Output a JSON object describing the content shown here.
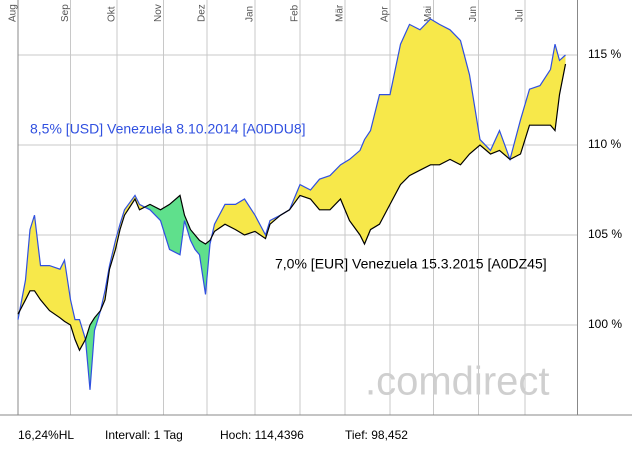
{
  "chart_data": {
    "type": "spread-line",
    "x": [
      0,
      5,
      8,
      11,
      15,
      21,
      28,
      31,
      35,
      38,
      41,
      45,
      48,
      51,
      55,
      58,
      61,
      65,
      68,
      71,
      78,
      81,
      88,
      95,
      101,
      108,
      111,
      115,
      118,
      121,
      125,
      128,
      131,
      138,
      145,
      151,
      158,
      165,
      168,
      175,
      181,
      188,
      195,
      201,
      208,
      215,
      221,
      228,
      231,
      235,
      241,
      248,
      255,
      261,
      268,
      275,
      281,
      288,
      295,
      301,
      308,
      315,
      321,
      328,
      335,
      341,
      348,
      355,
      358,
      361,
      365
    ],
    "series": [
      {
        "name": "8,5% [USD] Venezuela 8.10.2014 [A0DDU8]",
        "color": "#3050e0",
        "values": [
          100.3,
          102.5,
          105.3,
          106.1,
          103.3,
          103.3,
          103.1,
          103.6,
          101.4,
          100.3,
          100.3,
          99.2,
          96.4,
          99.7,
          100.8,
          101.9,
          103.3,
          104.7,
          105.6,
          106.4,
          107.2,
          106.7,
          106.4,
          105.8,
          104.2,
          103.9,
          105.8,
          104.7,
          104.2,
          103.9,
          101.7,
          104.5,
          105.6,
          106.7,
          106.7,
          107.0,
          106.1,
          105.0,
          105.8,
          106.1,
          106.4,
          107.8,
          107.5,
          108.1,
          108.3,
          108.9,
          109.2,
          109.7,
          110.3,
          110.8,
          112.8,
          112.8,
          115.6,
          116.7,
          116.4,
          117.0,
          116.7,
          116.4,
          115.8,
          113.9,
          110.3,
          109.7,
          110.8,
          109.2,
          111.4,
          113.1,
          113.3,
          114.2,
          115.6,
          114.7,
          115.0
        ]
      },
      {
        "name": "7,0% [EUR] Venezuela 15.3.2015 [A0DZ45]",
        "color": "#000000",
        "values": [
          100.6,
          101.4,
          101.9,
          101.9,
          101.4,
          100.8,
          100.4,
          100.2,
          100.0,
          99.2,
          98.6,
          99.2,
          100.0,
          100.4,
          100.8,
          101.4,
          103.1,
          104.2,
          105.3,
          106.1,
          107.0,
          106.4,
          106.7,
          106.4,
          106.7,
          107.2,
          106.1,
          105.3,
          105.0,
          104.7,
          104.5,
          104.7,
          105.2,
          105.6,
          105.3,
          105.0,
          105.2,
          104.8,
          105.6,
          106.1,
          106.4,
          107.2,
          107.0,
          106.4,
          106.4,
          107.0,
          105.8,
          105.0,
          104.5,
          105.3,
          105.6,
          106.7,
          107.8,
          108.3,
          108.6,
          108.9,
          108.9,
          109.2,
          108.9,
          109.5,
          110.0,
          109.5,
          109.7,
          109.2,
          109.5,
          111.1,
          111.1,
          111.1,
          110.8,
          112.8,
          114.5
        ]
      }
    ],
    "above_color": "#f7e84a",
    "below_color": "#5fe08c",
    "xlim": [
      0,
      373
    ],
    "xticks": [
      {
        "value": 0,
        "label": "Aug"
      },
      {
        "value": 35,
        "label": "Sep"
      },
      {
        "value": 66,
        "label": "Okt"
      },
      {
        "value": 97,
        "label": "Nov"
      },
      {
        "value": 126,
        "label": "Dez"
      },
      {
        "value": 158,
        "label": "Jan"
      },
      {
        "value": 188,
        "label": "Feb"
      },
      {
        "value": 218,
        "label": "Mär"
      },
      {
        "value": 248,
        "label": "Apr"
      },
      {
        "value": 277,
        "label": "Mai"
      },
      {
        "value": 307,
        "label": "Jun"
      },
      {
        "value": 338,
        "label": "Jul"
      }
    ],
    "ylim": [
      95,
      118
    ],
    "yticks": [
      {
        "value": 100,
        "label": "100 %"
      },
      {
        "value": 105,
        "label": "105 %"
      },
      {
        "value": 110,
        "label": "110 %"
      },
      {
        "value": 115,
        "label": "115 %"
      }
    ],
    "grid": true,
    "watermark": ".comdirect",
    "footer": [
      "16,24%HL",
      "Intervall: 1 Tag",
      "Hoch: 114,4396",
      "Tief: 98,452"
    ]
  }
}
